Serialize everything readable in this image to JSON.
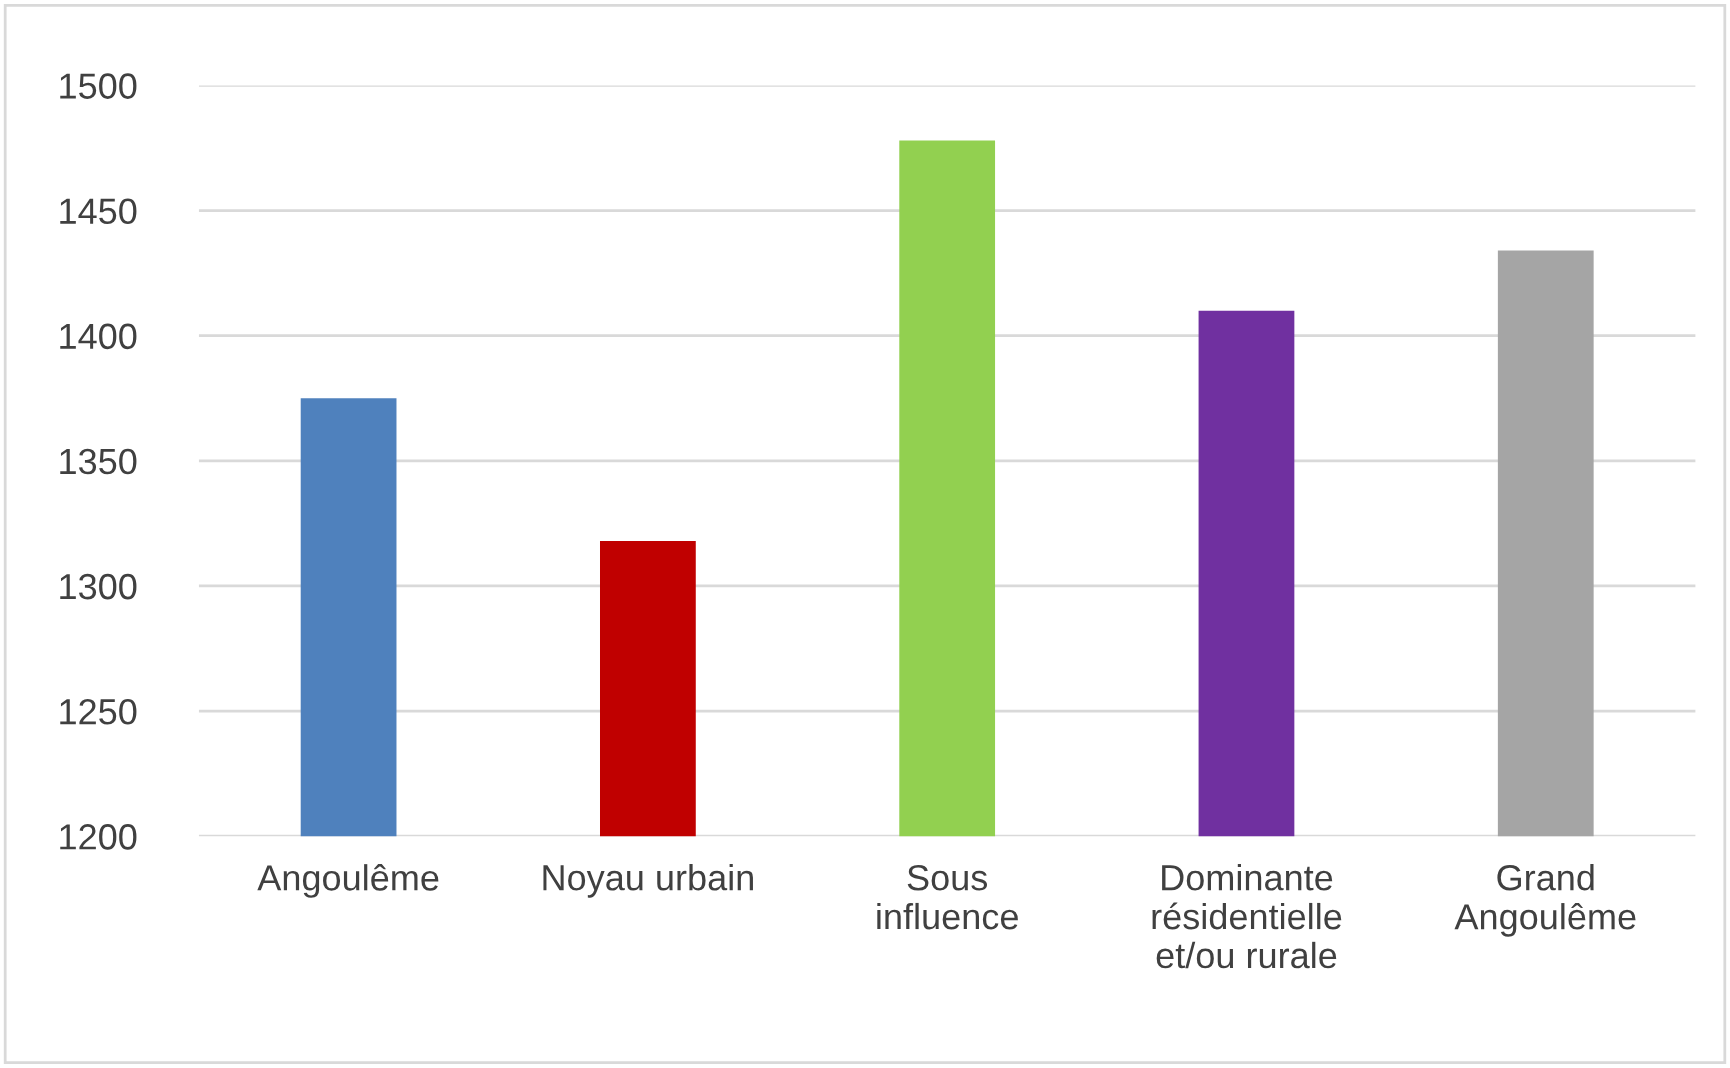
{
  "chart_data": {
    "type": "bar",
    "categories": [
      "Angoulême",
      "Noyau urbain",
      "Sous influence",
      "Dominante résidentielle et/ou rurale",
      "Grand Angoulême"
    ],
    "values": [
      1375,
      1318,
      1478,
      1410,
      1434
    ],
    "colors": [
      "#4f81bd",
      "#c00000",
      "#92d050",
      "#7030a0",
      "#a5a5a5"
    ],
    "ylim": [
      1200,
      1500
    ],
    "yticks": [
      1200,
      1250,
      1300,
      1350,
      1400,
      1450,
      1500
    ],
    "grid": "y"
  }
}
